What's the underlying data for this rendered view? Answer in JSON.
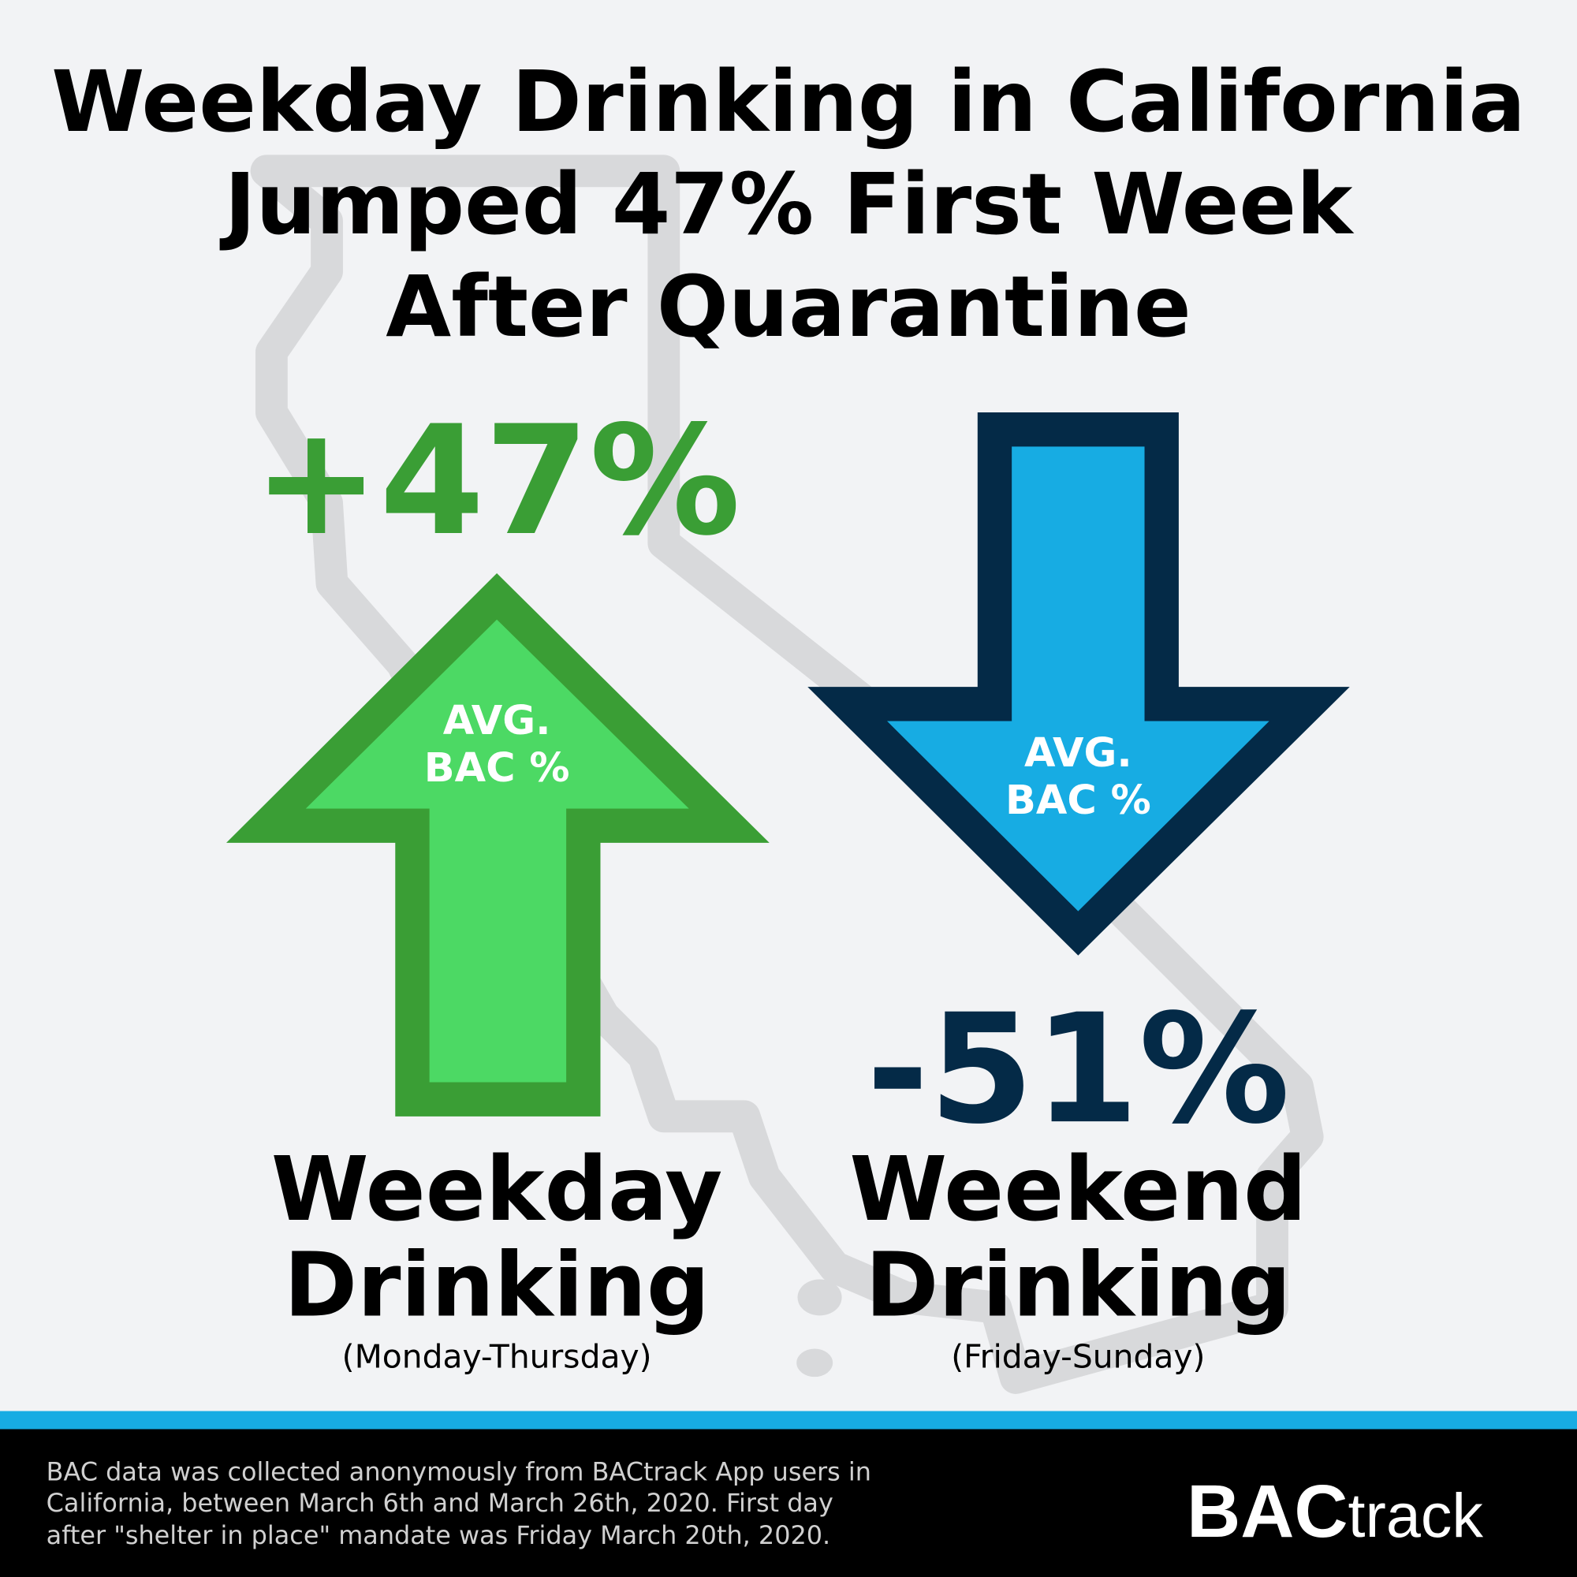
{
  "title": [
    "Weekday Drinking in California",
    "Jumped 47% First Week",
    "After Quarantine"
  ],
  "panels": [
    {
      "change": "+47%",
      "arrow_label": [
        "AVG.",
        "BAC %"
      ],
      "label": [
        "Weekday",
        "Drinking"
      ],
      "days": "(Monday-Thursday)"
    },
    {
      "change": "-51%",
      "arrow_label": [
        "AVG.",
        "BAC %"
      ],
      "label": [
        "Weekend",
        "Drinking"
      ],
      "days": "(Friday-Sunday)"
    }
  ],
  "footer": {
    "note": [
      "BAC data was collected anonymously from BACtrack App users in",
      "California, between March 6th and March 26th, 2020. First day",
      "after \"shelter in place\" mandate was Friday March 20th, 2020."
    ],
    "logo": {
      "bold": "BAC",
      "light": "track"
    }
  }
}
